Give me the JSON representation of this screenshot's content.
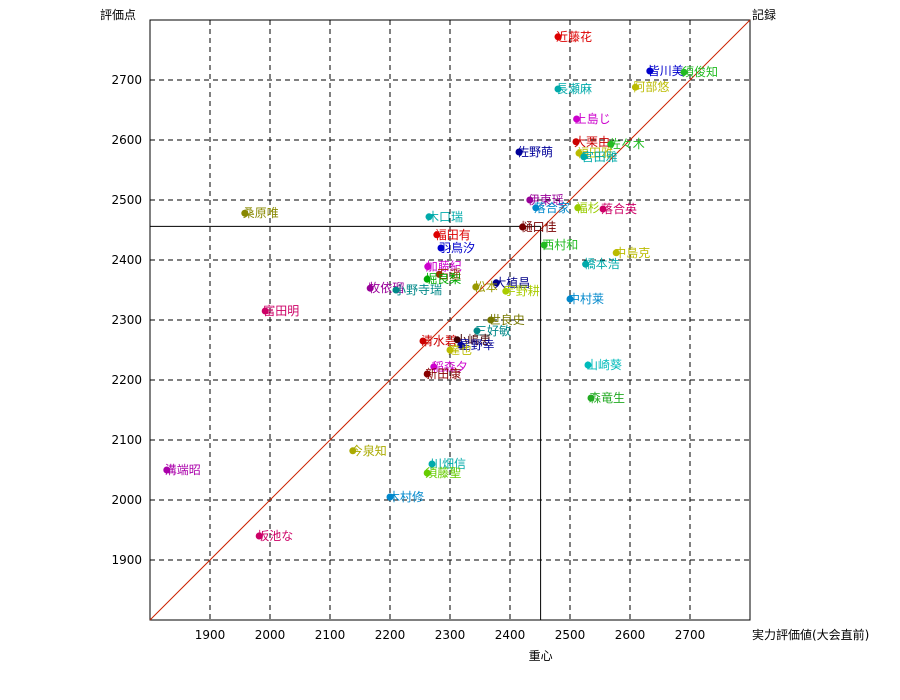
{
  "chart_data": {
    "type": "scatter",
    "title": "",
    "xlabel": "実力評価値(大会直前)",
    "ylabel": "評価点",
    "diagonal_label": "記録",
    "marker_label": "重心",
    "xlim": [
      1800,
      2800
    ],
    "ylim": [
      1800,
      2800
    ],
    "xticks": [
      1900,
      2000,
      2100,
      2200,
      2300,
      2400,
      2500,
      2600,
      2700
    ],
    "yticks": [
      1900,
      2000,
      2100,
      2200,
      2300,
      2400,
      2500,
      2600,
      2700
    ],
    "grid": true,
    "diagonal": true,
    "center": {
      "x": 2451,
      "y": 2456
    },
    "points": [
      {
        "label": "近藤花",
        "x": 2480,
        "y": 2772,
        "color": "#dd0000"
      },
      {
        "label": "皆川美",
        "x": 2633,
        "y": 2715,
        "color": "#0000cc"
      },
      {
        "label": "須俊知",
        "x": 2690,
        "y": 2713,
        "color": "#22bb22"
      },
      {
        "label": "阿部悠",
        "x": 2609,
        "y": 2688,
        "color": "#bbbb00"
      },
      {
        "label": "長瀬麻",
        "x": 2480,
        "y": 2685,
        "color": "#00aaaa"
      },
      {
        "label": "上島じ",
        "x": 2511,
        "y": 2635,
        "color": "#cc00cc"
      },
      {
        "label": "大栗由",
        "x": 2510,
        "y": 2597,
        "color": "#cc0000"
      },
      {
        "label": "佐々木",
        "x": 2568,
        "y": 2593,
        "color": "#22bb22"
      },
      {
        "label": "福田雅",
        "x": 2515,
        "y": 2578,
        "color": "#bbbb00"
      },
      {
        "label": "宮田雅",
        "x": 2523,
        "y": 2572,
        "color": "#00aaaa"
      },
      {
        "label": "佐野萌",
        "x": 2415,
        "y": 2580,
        "color": "#000099"
      },
      {
        "label": "伊東瑶",
        "x": 2433,
        "y": 2500,
        "color": "#990099"
      },
      {
        "label": "落合英",
        "x": 2555,
        "y": 2485,
        "color": "#cc0066"
      },
      {
        "label": "福杉",
        "x": 2513,
        "y": 2487,
        "color": "#99cc00"
      },
      {
        "label": "落合家",
        "x": 2443,
        "y": 2487,
        "color": "#0088cc"
      },
      {
        "label": "桑原唯",
        "x": 1958,
        "y": 2478,
        "color": "#888800"
      },
      {
        "label": "木口瑞",
        "x": 2265,
        "y": 2472,
        "color": "#00aaaa"
      },
      {
        "label": "樋口佳",
        "x": 2421,
        "y": 2455,
        "color": "#770000"
      },
      {
        "label": "福田有",
        "x": 2278,
        "y": 2442,
        "color": "#dd0000"
      },
      {
        "label": "羽鳥汐",
        "x": 2285,
        "y": 2420,
        "color": "#0000cc"
      },
      {
        "label": "西村和",
        "x": 2457,
        "y": 2425,
        "color": "#22bb22"
      },
      {
        "label": "中島克",
        "x": 2577,
        "y": 2412,
        "color": "#bbbb00"
      },
      {
        "label": "橋本浩",
        "x": 2526,
        "y": 2393,
        "color": "#00aaaa"
      },
      {
        "label": "加藤紀",
        "x": 2263,
        "y": 2389,
        "color": "#cc00cc"
      },
      {
        "label": "石遥",
        "x": 2282,
        "y": 2376,
        "color": "#993300"
      },
      {
        "label": "堀良梨",
        "x": 2262,
        "y": 2368,
        "color": "#00aa00"
      },
      {
        "label": "牧依瑠",
        "x": 2167,
        "y": 2353,
        "color": "#990099"
      },
      {
        "label": "小野寺瑞",
        "x": 2210,
        "y": 2350,
        "color": "#008888"
      },
      {
        "label": "大植昌",
        "x": 2377,
        "y": 2362,
        "color": "#000088"
      },
      {
        "label": "松本",
        "x": 2343,
        "y": 2355,
        "color": "#999900"
      },
      {
        "label": "宇野耕",
        "x": 2393,
        "y": 2348,
        "color": "#aacc00"
      },
      {
        "label": "中村莱",
        "x": 2500,
        "y": 2335,
        "color": "#0088cc"
      },
      {
        "label": "富田明",
        "x": 1992,
        "y": 2315,
        "color": "#cc0066"
      },
      {
        "label": "世良史",
        "x": 2368,
        "y": 2300,
        "color": "#777700"
      },
      {
        "label": "三好敏",
        "x": 2345,
        "y": 2282,
        "color": "#008888"
      },
      {
        "label": "清水碧",
        "x": 2255,
        "y": 2265,
        "color": "#cc0000"
      },
      {
        "label": "小嶋恵",
        "x": 2312,
        "y": 2267,
        "color": "#440000"
      },
      {
        "label": "星野幸",
        "x": 2318,
        "y": 2258,
        "color": "#000099"
      },
      {
        "label": "達也",
        "x": 2300,
        "y": 2250,
        "color": "#bbbb00"
      },
      {
        "label": "山崎葵",
        "x": 2530,
        "y": 2225,
        "color": "#00bbbb"
      },
      {
        "label": "稲森夕",
        "x": 2273,
        "y": 2222,
        "color": "#cc00cc"
      },
      {
        "label": "新田康",
        "x": 2262,
        "y": 2210,
        "color": "#880000"
      },
      {
        "label": "森竜生",
        "x": 2535,
        "y": 2170,
        "color": "#22aa22"
      },
      {
        "label": "今泉知",
        "x": 2138,
        "y": 2082,
        "color": "#aaaa00"
      },
      {
        "label": "川畑信",
        "x": 2270,
        "y": 2060,
        "color": "#00aaaa"
      },
      {
        "label": "溝端昭",
        "x": 1828,
        "y": 2050,
        "color": "#aa00aa"
      },
      {
        "label": "須藤聖",
        "x": 2262,
        "y": 2045,
        "color": "#66cc00"
      },
      {
        "label": "木村修",
        "x": 2200,
        "y": 2005,
        "color": "#0088cc"
      },
      {
        "label": "坂池な",
        "x": 1982,
        "y": 1940,
        "color": "#cc0066"
      }
    ]
  }
}
